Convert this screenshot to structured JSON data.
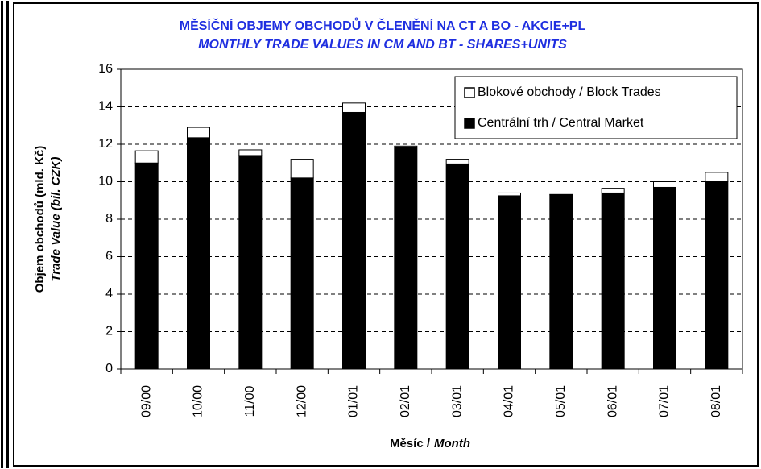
{
  "chart_data": {
    "type": "stacked_bar",
    "title": "MĚSÍČNÍ OBJEMY OBCHODŮ V ČLENĚNÍ NA CT A BO - AKCIE+PL",
    "subtitle": "MONTHLY TRADE VALUES IN CM AND BT - SHARES+UNITS",
    "y_label": [
      "Objem obchodů (mld. Kč)",
      "Trade Value (bil. CZK)"
    ],
    "x_label": [
      "Měsíc /",
      "Month"
    ],
    "categories": [
      "09/00",
      "10/00",
      "11/00",
      "12/00",
      "01/01",
      "02/01",
      "03/01",
      "04/01",
      "05/01",
      "06/01",
      "07/01",
      "08/01"
    ],
    "series": [
      {
        "name": "Centrální trh / Central Market",
        "color": "#000000",
        "values": [
          11.0,
          12.35,
          11.4,
          10.2,
          13.7,
          11.85,
          10.95,
          9.25,
          9.3,
          9.4,
          9.7,
          10.0
        ]
      },
      {
        "name": "Blokové obchody / Block Trades",
        "color": "#ffffff",
        "values": [
          0.65,
          0.55,
          0.3,
          1.0,
          0.5,
          0.05,
          0.25,
          0.15,
          0.02,
          0.25,
          0.3,
          0.5
        ]
      }
    ],
    "ylim": [
      0,
      16
    ],
    "yticks": [
      0,
      2,
      4,
      6,
      8,
      10,
      12,
      14,
      16
    ],
    "grid": true,
    "legend": "top-right"
  }
}
